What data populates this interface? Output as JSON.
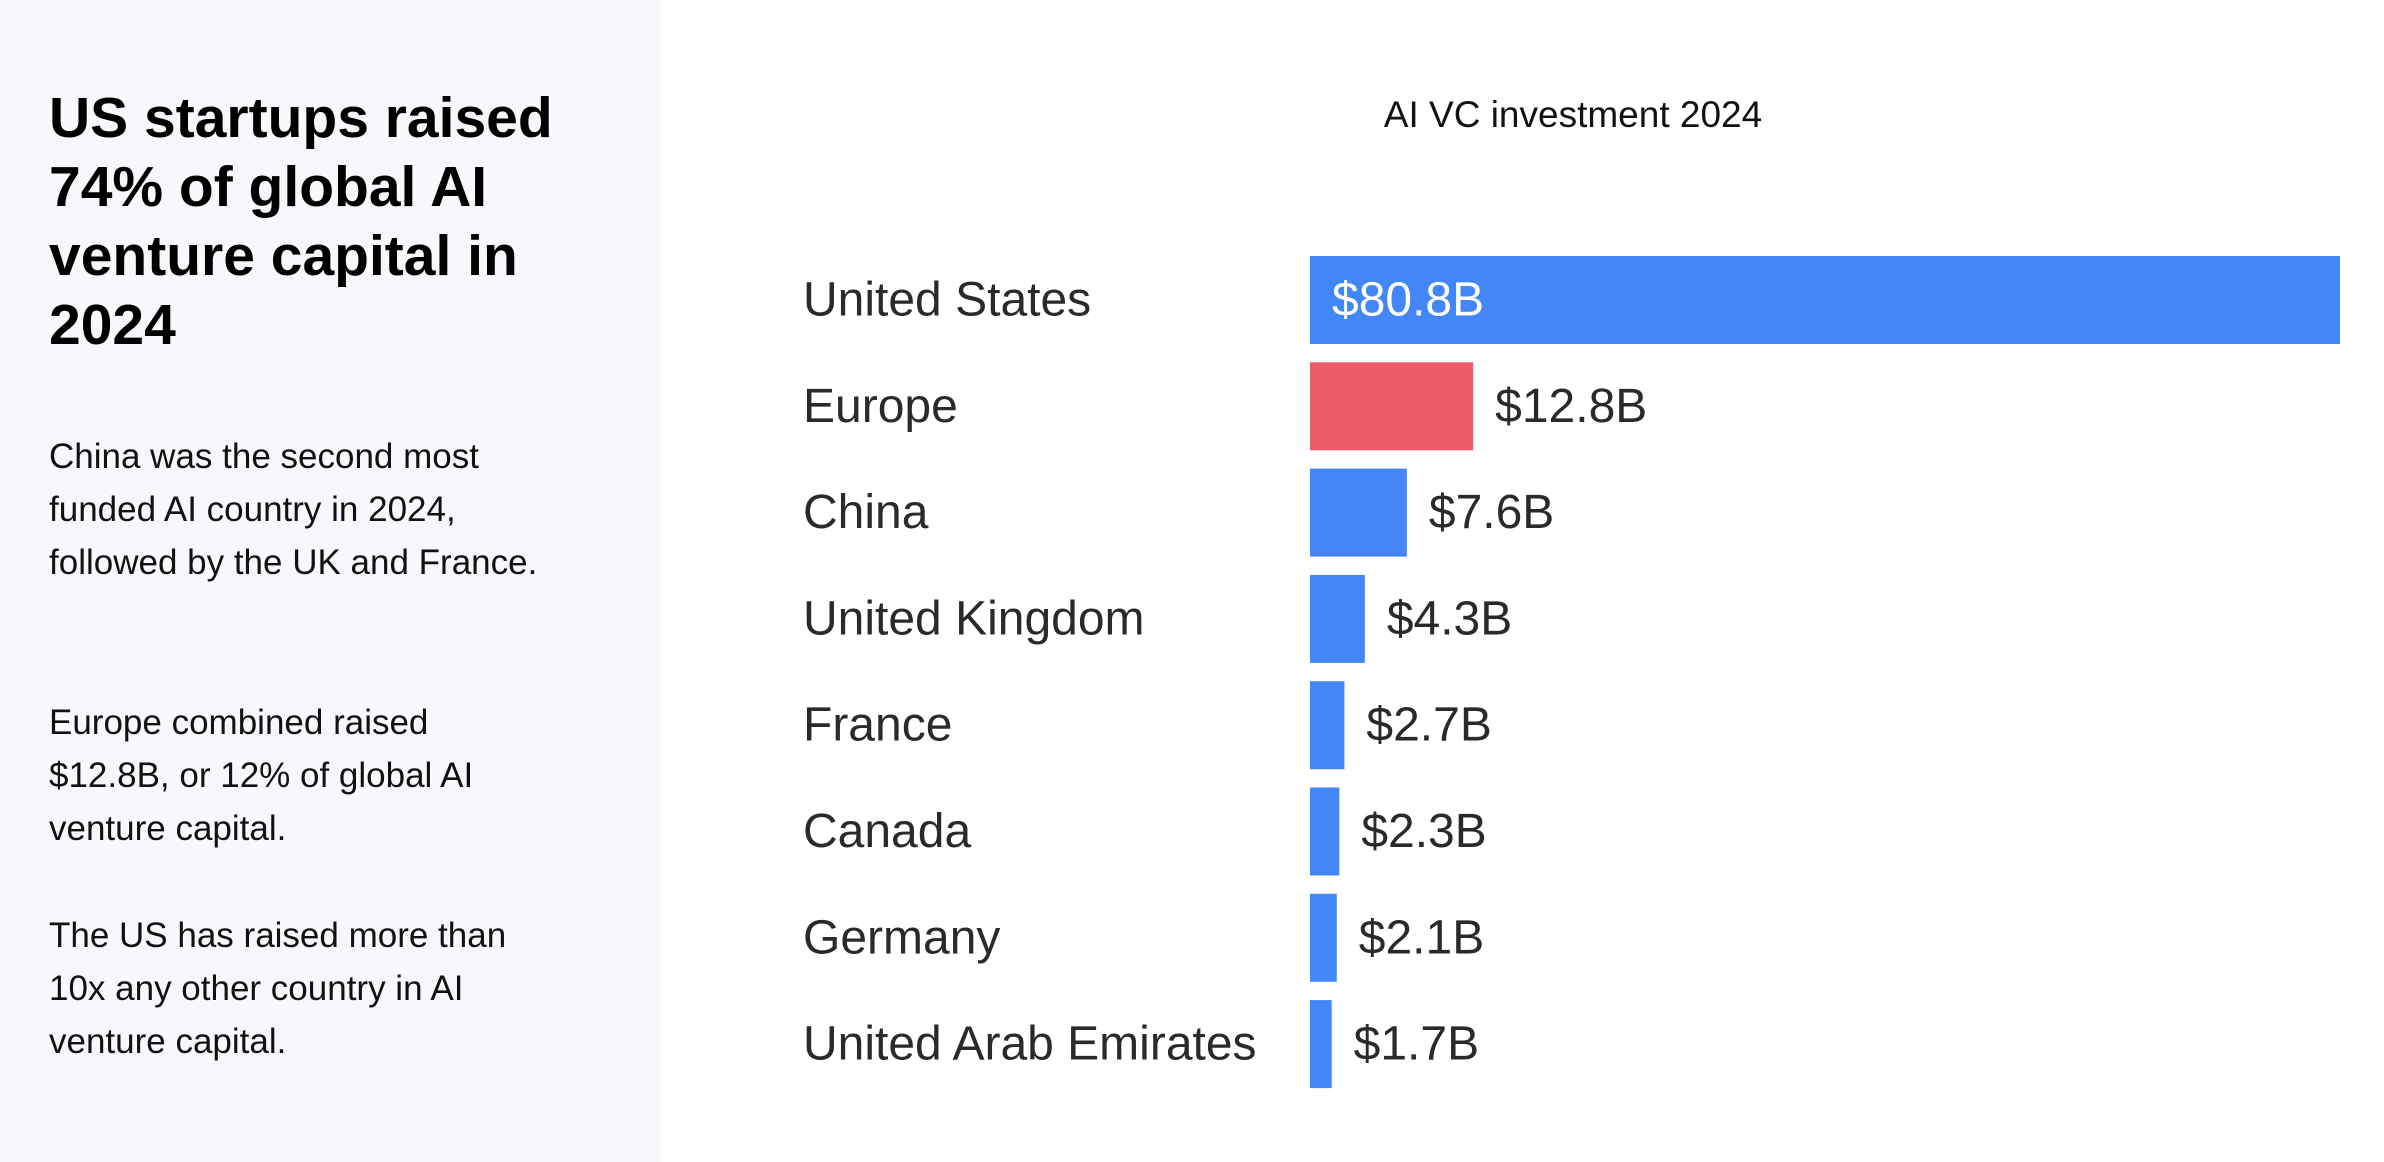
{
  "headline": "US startups raised 74% of global AI venture capital in 2024",
  "paragraphs": [
    "China was the second most funded AI country in 2024, followed by the UK and France.",
    "Europe combined raised $12.8B, or 12% of global AI venture capital.",
    "The US has raised more than 10x any other country in AI venture capital."
  ],
  "colors": {
    "default_bar": "#4286f7",
    "highlight_bar": "#ec5a66",
    "panel_bg": "#f7f8fc"
  },
  "chart_data": {
    "type": "bar",
    "orientation": "horizontal",
    "title": "AI VC investment 2024",
    "xlabel": "",
    "ylabel": "",
    "unit": "$B",
    "categories": [
      "United States",
      "Europe",
      "China",
      "United Kingdom",
      "France",
      "Canada",
      "Germany",
      "United Arab Emirates"
    ],
    "values": [
      80.8,
      12.8,
      7.6,
      4.3,
      2.7,
      2.3,
      2.1,
      1.7
    ],
    "labels": [
      "$80.8B",
      "$12.8B",
      "$7.6B",
      "$4.3B",
      "$2.7B",
      "$2.3B",
      "$2.1B",
      "$1.7B"
    ],
    "highlight": [
      "Europe"
    ],
    "xlim": [
      0,
      80.8
    ],
    "grid": false,
    "legend": "none"
  }
}
